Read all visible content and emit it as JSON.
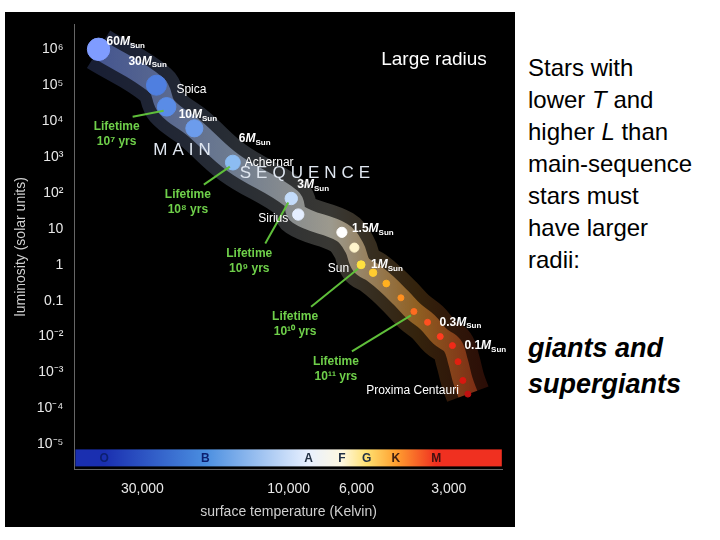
{
  "chart_data": {
    "type": "scatter",
    "x_label": "surface temperature (Kelvin)",
    "y_label": "luminosity (solar units)",
    "log": true,
    "grid": false,
    "xlim": [
      50000,
      2000
    ],
    "xticks": [
      {
        "value": 30000,
        "label": "30,000"
      },
      {
        "value": 10000,
        "label": "10,000"
      },
      {
        "value": 6000,
        "label": "6,000"
      },
      {
        "value": 3000,
        "label": "3,000"
      }
    ],
    "ylim": [
      2e-06,
      5000000
    ],
    "yticks": [
      {
        "value": 1000000,
        "label": "10⁶"
      },
      {
        "value": 100000,
        "label": "10⁵"
      },
      {
        "value": 10000,
        "label": "10⁴"
      },
      {
        "value": 1000,
        "label": "10³"
      },
      {
        "value": 100,
        "label": "10²"
      },
      10,
      1,
      0.1,
      {
        "value": 0.01,
        "label": "10⁻²"
      },
      {
        "value": 0.001,
        "label": "10⁻³"
      },
      {
        "value": 0.0001,
        "label": "10⁻⁴"
      },
      {
        "value": 1e-05,
        "label": "10⁻⁵"
      }
    ],
    "x": [
      41700,
      27000,
      25000,
      20300,
      15200,
      9800,
      9300,
      6700,
      6100,
      5800,
      5300,
      4800,
      4300,
      3900,
      3520,
      3200,
      2920,
      2800,
      2700,
      2600
    ],
    "values": [
      1000000,
      100000,
      25000,
      6300,
      700,
      70,
      25,
      8,
      3,
      1,
      0.6,
      0.3,
      0.12,
      0.05,
      0.025,
      0.01,
      0.0056,
      0.002,
      0.0006,
      0.00025
    ],
    "colors": [
      "#7f9cff",
      "#4f7fe0",
      "#5a8ce6",
      "#6c9cec",
      "#8cbcf2",
      "#c4dcfa",
      "#e4eeff",
      "#ffffff",
      "#fff4cc",
      "#ffe040",
      "#ffcc30",
      "#ffb020",
      "#ff9020",
      "#ff6c20",
      "#ff5020",
      "#ff3c20",
      "#f02a18",
      "#e02010",
      "#d81810",
      "#c01010"
    ],
    "star_names": [
      null,
      "Spica",
      null,
      null,
      "Achernar",
      null,
      "Sirius",
      null,
      null,
      "Sun",
      null,
      null,
      null,
      null,
      null,
      null,
      null,
      null,
      "Proxima Centauri",
      null
    ],
    "masses": [
      60,
      30,
      10,
      null,
      6,
      3,
      null,
      1.5,
      null,
      1,
      null,
      null,
      null,
      null,
      0.3,
      null,
      0.1,
      null,
      null,
      null
    ],
    "mass_unit": "M",
    "mass_unit_subscript": "Sun",
    "lifetime_label": "Lifetime",
    "lifetimes": [
      null,
      null,
      "10⁷ yrs",
      null,
      "10⁸ yrs",
      "10⁹ yrs",
      null,
      null,
      null,
      "10¹⁰ yrs",
      null,
      null,
      null,
      "10¹¹ yrs",
      null,
      null,
      null,
      null,
      null,
      null
    ],
    "band_label": "MAIN SEQUENCE",
    "corner_note": "Large radius",
    "spectral_classes": [
      {
        "label": "O",
        "x": 40000
      },
      {
        "label": "B",
        "x": 18700
      },
      {
        "label": "A",
        "x": 8600
      },
      {
        "label": "F",
        "x": 6700
      },
      {
        "label": "G",
        "x": 5560
      },
      {
        "label": "K",
        "x": 4470
      },
      {
        "label": "M",
        "x": 3300
      }
    ]
  },
  "side_text": {
    "lines": [
      "Stars with",
      "lower T and",
      "higher L than",
      "main-sequence",
      "stars must",
      "have larger",
      "radii:"
    ],
    "emphasis": [
      "giants and",
      "supergiants"
    ]
  }
}
